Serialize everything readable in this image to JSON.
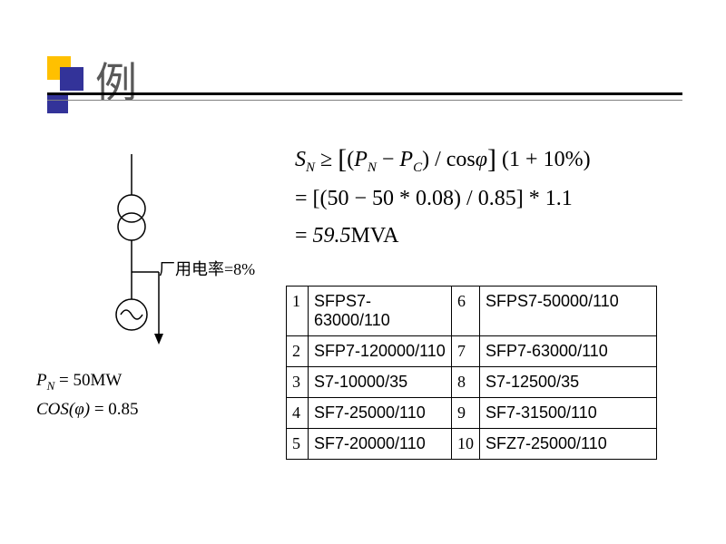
{
  "title": "例",
  "diagram": {
    "factory_usage_label": "厂用电率=8%",
    "line_color": "#000000",
    "accent_yellow": "#ffc000",
    "accent_blue": "#333399"
  },
  "params": {
    "line1_prefix": "P",
    "line1_sub": "N",
    "line1_rest": " = 50MW",
    "line2_prefix": "COS",
    "line2_phi": "(φ)",
    "line2_rest": " = 0.85"
  },
  "formula": {
    "line1": {
      "S": "S",
      "Ssub": "N",
      "geq": " ≥ ",
      "lbr": "[",
      "lp": "(",
      "P1": "P",
      "P1sub": "N",
      "minus": " − ",
      "P2": "P",
      "P2sub": "C",
      "rp": ") / cos",
      "phi": "φ",
      "rbr": "]",
      "tail": " (1 + 10%)"
    },
    "line2": "= [(50 − 50 * 0.08) / 0.85] * 1.1",
    "line3": "= 59.5MVA"
  },
  "table": {
    "rows": [
      {
        "n1": "1",
        "m1": "SFPS7-63000/110",
        "n2": "6",
        "m2": "SFPS7-50000/110"
      },
      {
        "n1": "2",
        "m1": "SFP7-120000/110",
        "n2": "7",
        "m2": "SFP7-63000/110"
      },
      {
        "n1": "3",
        "m1": "S7-10000/35",
        "n2": "8",
        "m2": "S7-12500/35"
      },
      {
        "n1": "4",
        "m1": "SF7-25000/110",
        "n2": "9",
        "m2": "SF7-31500/110"
      },
      {
        "n1": "5",
        "m1": "SF7-20000/110",
        "n2": "10",
        "m2": "SFZ7-25000/110"
      }
    ]
  }
}
